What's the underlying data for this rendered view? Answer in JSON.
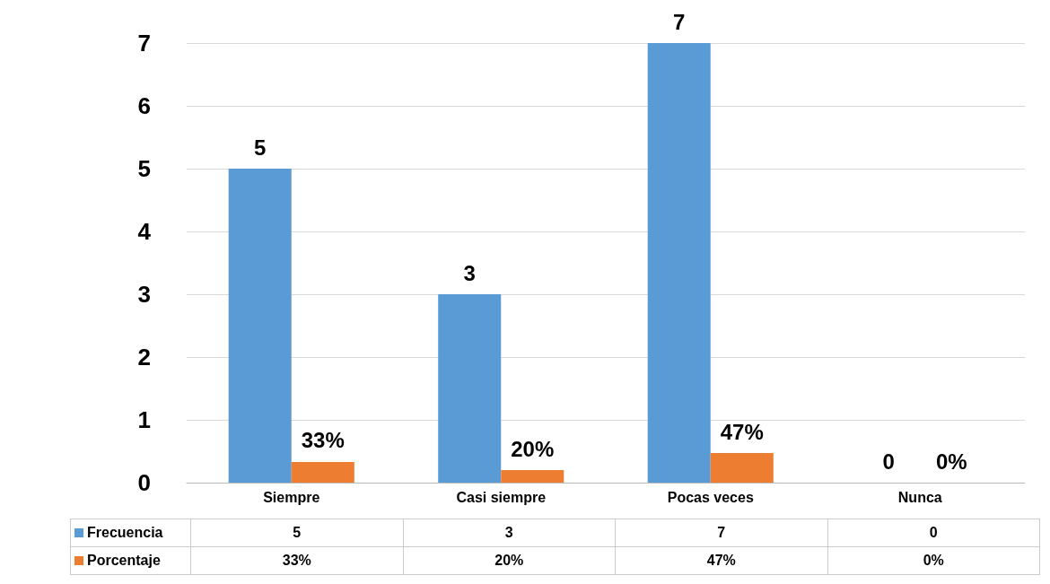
{
  "chart_data": {
    "type": "bar",
    "categories": [
      "Siempre",
      "Casi siempre",
      "Pocas veces",
      "Nunca"
    ],
    "series": [
      {
        "name": "Frecuencia",
        "color": "#5b9bd5",
        "values": [
          5,
          3,
          7,
          0
        ],
        "value_labels": [
          "5",
          "3",
          "7",
          "0"
        ]
      },
      {
        "name": "Porcentaje",
        "color": "#ed7d31",
        "values": [
          0.33,
          0.2,
          0.47,
          0
        ],
        "value_labels": [
          "33%",
          "20%",
          "47%",
          "0%"
        ]
      }
    ],
    "ylim": [
      0,
      7
    ],
    "yticks": [
      0,
      1,
      2,
      3,
      4,
      5,
      6,
      7
    ],
    "grid": "y",
    "legend": "bottom"
  }
}
